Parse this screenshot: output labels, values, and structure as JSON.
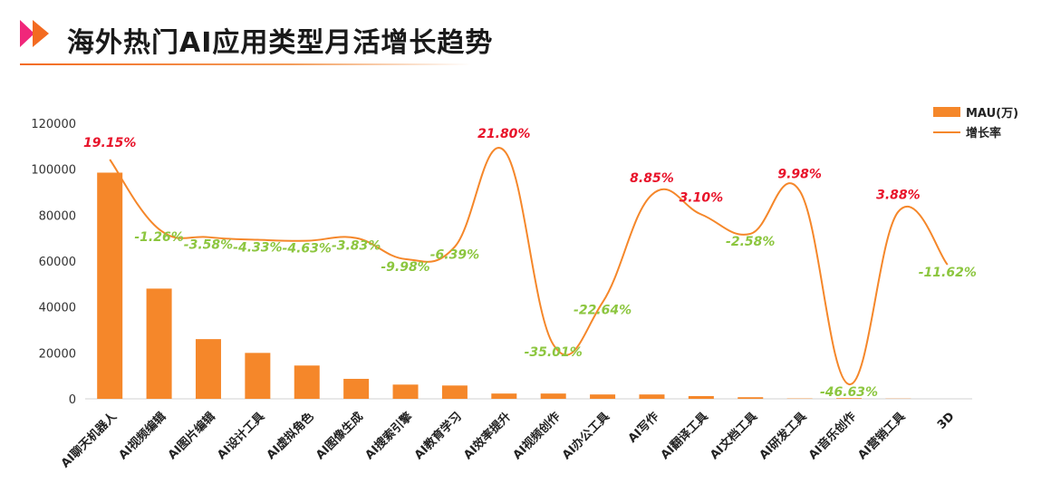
{
  "header": {
    "title": "海外热门AI应用类型月活增长趋势"
  },
  "colors": {
    "bar": "#f5872a",
    "line": "#f5872a",
    "positive": "#e8132a",
    "negative": "#8cc63f",
    "logo_pink": "#f0277a",
    "logo_orange": "#f36b21",
    "axis": "#d0d0d0"
  },
  "chart_data": {
    "type": "bar",
    "categories": [
      "AI聊天机器人",
      "AI视频编辑",
      "AI图片编辑",
      "AI设计工具",
      "AI虚拟角色",
      "AI图像生成",
      "AI搜索引擎",
      "AI教育学习",
      "AI效率提升",
      "AI视频创作",
      "AI办公工具",
      "AI写作",
      "AI翻译工具",
      "AI文档工具",
      "AI研发工具",
      "AI音乐创作",
      "AI营销工具",
      "3D"
    ],
    "ylim": [
      0,
      120000
    ],
    "yticks": [
      "0",
      "20000",
      "40000",
      "60000",
      "80000",
      "100000",
      "120000"
    ],
    "series": [
      {
        "name": "MAU(万)",
        "type": "bar",
        "values": [
          98500,
          48000,
          26000,
          20000,
          14500,
          8700,
          6200,
          5800,
          2300,
          2300,
          1900,
          1900,
          1200,
          700,
          150,
          300,
          100,
          0
        ]
      },
      {
        "name": "增长率",
        "type": "line",
        "values": [
          19.15,
          -1.26,
          -3.58,
          -4.33,
          -4.63,
          -3.83,
          -9.98,
          -6.39,
          21.8,
          -35.01,
          -22.64,
          8.85,
          3.1,
          -2.58,
          9.98,
          -46.63,
          3.88,
          -11.62
        ],
        "labels": [
          "19.15%",
          "-1.26%",
          "-3.58%",
          "-4.33%",
          "-4.63%",
          "-3.83%",
          "-9.98%",
          "-6.39%",
          "21.80%",
          "-35.01%",
          "-22.64%",
          "8.85%",
          "3.10%",
          "-2.58%",
          "9.98%",
          "-46.63%",
          "3.88%",
          "-11.62%"
        ]
      }
    ],
    "legend": [
      {
        "name": "MAU(万)",
        "symbol": "bar"
      },
      {
        "name": "增长率",
        "symbol": "line"
      }
    ],
    "legend_position": "top-right",
    "grid": false
  }
}
